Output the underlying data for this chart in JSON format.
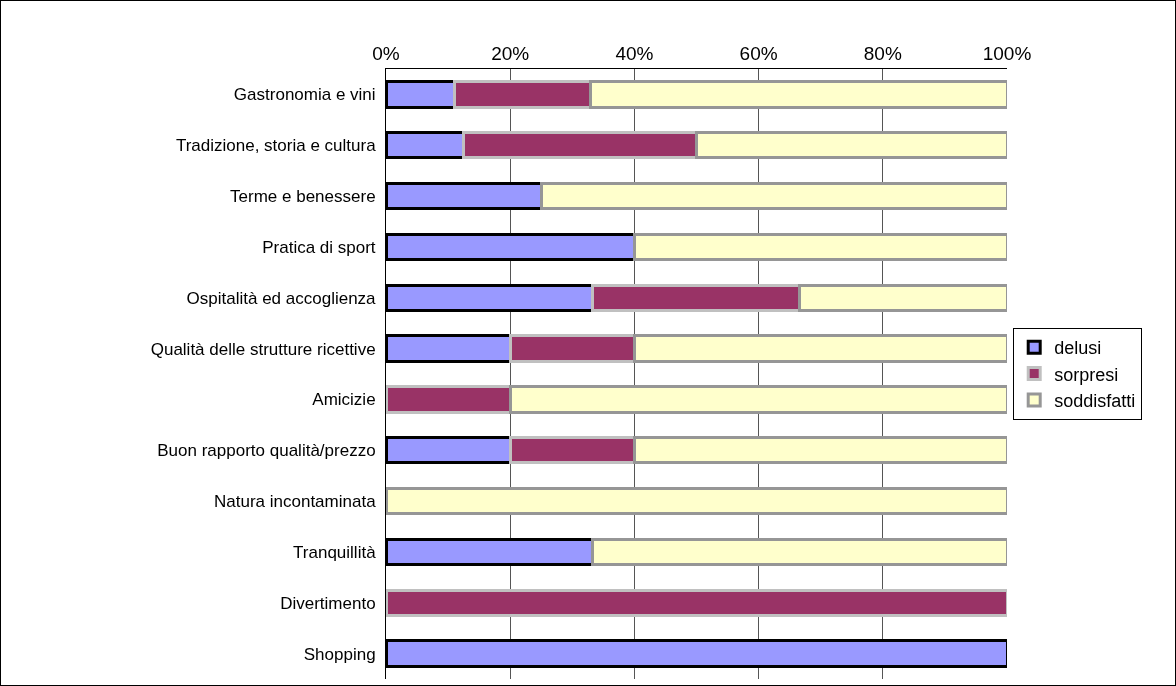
{
  "chart_data": {
    "type": "bar",
    "orientation": "horizontal",
    "stacked": true,
    "categories": [
      "Gastronomia e vini",
      "Tradizione, storia e cultura",
      "Terme e benessere",
      "Pratica di sport",
      "Ospitalità ed accoglienza",
      "Qualità delle strutture ricettive",
      "Amicizie",
      "Buon rapporto qualità/prezzo",
      "Natura incontaminata",
      "Tranquillità",
      "Divertimento",
      "Shopping"
    ],
    "series": [
      {
        "name": "delusi",
        "color": "#9999ff",
        "values": [
          11,
          12.5,
          25,
          40,
          33.3,
          20,
          0,
          20,
          0,
          33.3,
          0,
          100
        ]
      },
      {
        "name": "sorpresi",
        "color": "#993366",
        "values": [
          22,
          37.5,
          0,
          0,
          33.3,
          20,
          20,
          20,
          0,
          0,
          100,
          0
        ]
      },
      {
        "name": "soddisfatti",
        "color": "#ffffcc",
        "values": [
          67,
          50,
          75,
          60,
          33.4,
          60,
          80,
          60,
          100,
          66.7,
          0,
          0
        ]
      }
    ],
    "xlim": [
      0,
      100
    ],
    "xticks": [
      {
        "value": 0,
        "label": "0%"
      },
      {
        "value": 20,
        "label": "20%"
      },
      {
        "value": 40,
        "label": "40%"
      },
      {
        "value": 60,
        "label": "60%"
      },
      {
        "value": 80,
        "label": "80%"
      },
      {
        "value": 100,
        "label": "100%"
      }
    ],
    "grid": "x",
    "legend": "right"
  }
}
